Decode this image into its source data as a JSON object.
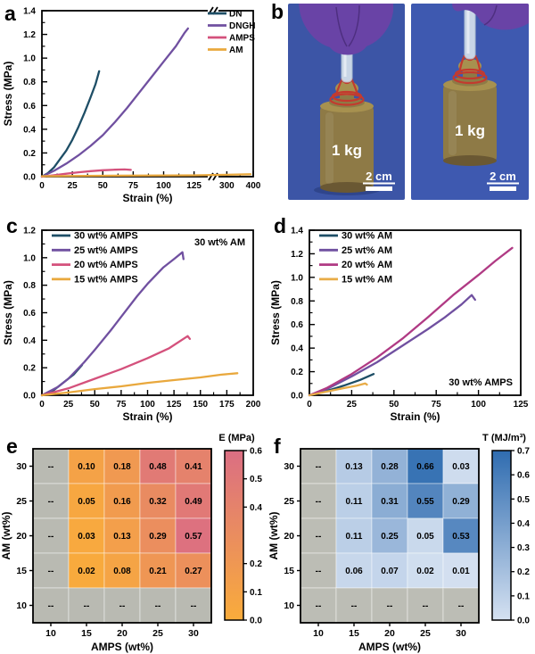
{
  "letters": {
    "a": "a",
    "b": "b",
    "c": "c",
    "d": "d",
    "e": "e",
    "f": "f"
  },
  "photo": {
    "colors": {
      "bg_left": "#3C55A6",
      "bg_right": "#3E59B0",
      "glove": "#6943A6",
      "glove_shade": "#4E2F80",
      "gel": "#DCE7EF",
      "wire": "#C33A2E",
      "brass": "#8E7A46",
      "brass_light": "#A7914F",
      "brass_dark": "#6A5833",
      "shadow": "#243876",
      "label_color": "#FFFFFF"
    },
    "photos": [
      {
        "weight_label": "1 kg",
        "scale_label": "2 cm"
      },
      {
        "weight_label": "1 kg",
        "scale_label": "2 cm"
      }
    ]
  },
  "chart_data": [
    {
      "id": "a",
      "type": "line",
      "xlabel": "Strain (%)",
      "ylabel": "Stress (MPa)",
      "ylim": [
        0,
        1.4
      ],
      "yticks": [
        [
          0,
          "0.0"
        ],
        [
          0.2,
          "0.2"
        ],
        [
          0.4,
          "0.4"
        ],
        [
          0.6,
          "0.6"
        ],
        [
          0.8,
          "0.8"
        ],
        [
          1,
          "1.0"
        ],
        [
          1.2,
          "1.2"
        ],
        [
          1.4,
          "1.4"
        ]
      ],
      "xbreak": {
        "seg1": [
          0,
          125
        ],
        "seg2": [
          300,
          400
        ],
        "frac1": 0.72,
        "fracGap": 0.155
      },
      "xticks": [
        [
          0,
          "0"
        ],
        [
          25,
          "25"
        ],
        [
          50,
          "50"
        ],
        [
          75,
          "75"
        ],
        [
          100,
          "100"
        ],
        [
          125,
          "125"
        ],
        [
          300,
          "300"
        ],
        [
          400,
          "400"
        ]
      ],
      "legend_pos": "ne",
      "series": [
        {
          "name": "DN",
          "color": "#1E4E66",
          "points": [
            [
              0,
              0
            ],
            [
              5,
              0.03
            ],
            [
              10,
              0.08
            ],
            [
              15,
              0.15
            ],
            [
              20,
              0.22
            ],
            [
              25,
              0.31
            ],
            [
              30,
              0.42
            ],
            [
              35,
              0.54
            ],
            [
              40,
              0.67
            ],
            [
              44,
              0.78
            ],
            [
              47,
              0.89
            ]
          ]
        },
        {
          "name": "DNGH",
          "color": "#7050A0",
          "points": [
            [
              0,
              0
            ],
            [
              10,
              0.05
            ],
            [
              20,
              0.11
            ],
            [
              30,
              0.18
            ],
            [
              40,
              0.26
            ],
            [
              50,
              0.35
            ],
            [
              60,
              0.46
            ],
            [
              70,
              0.58
            ],
            [
              80,
              0.71
            ],
            [
              90,
              0.84
            ],
            [
              100,
              0.97
            ],
            [
              110,
              1.1
            ],
            [
              117,
              1.21
            ],
            [
              120,
              1.25
            ]
          ]
        },
        {
          "name": "AMPS",
          "color": "#D4517C",
          "points": [
            [
              0,
              0
            ],
            [
              10,
              0.012
            ],
            [
              20,
              0.025
            ],
            [
              30,
              0.037
            ],
            [
              40,
              0.047
            ],
            [
              50,
              0.054
            ],
            [
              60,
              0.059
            ],
            [
              68,
              0.061
            ],
            [
              73,
              0.057
            ]
          ]
        },
        {
          "name": "AM",
          "color": "#E9A83D",
          "points": [
            [
              0,
              0.004
            ],
            [
              60,
              0.008
            ],
            [
              125,
              0.011
            ],
            [
              300,
              0.016
            ],
            [
              390,
              0.02
            ]
          ]
        }
      ]
    },
    {
      "id": "c",
      "type": "line",
      "xlabel": "Strain (%)",
      "ylabel": "Stress (MPa)",
      "xlim": [
        0,
        200
      ],
      "xticks": [
        [
          0,
          "0"
        ],
        [
          25,
          "25"
        ],
        [
          50,
          "50"
        ],
        [
          75,
          "75"
        ],
        [
          100,
          "100"
        ],
        [
          125,
          "125"
        ],
        [
          150,
          "150"
        ],
        [
          175,
          "175"
        ],
        [
          200,
          "200"
        ]
      ],
      "ylim": [
        0,
        1.2
      ],
      "yticks": [
        [
          0,
          "0.0"
        ],
        [
          0.2,
          "0.2"
        ],
        [
          0.4,
          "0.4"
        ],
        [
          0.6,
          "0.6"
        ],
        [
          0.8,
          "0.8"
        ],
        [
          1,
          "1.0"
        ],
        [
          1.2,
          "1.2"
        ]
      ],
      "legend_pos": "nw",
      "annotation": {
        "text": "30 wt% AM",
        "pos": "ne"
      },
      "series": [
        {
          "name": "30 wt% AMPS",
          "color": "#1E4E66",
          "points": [
            [
              0,
              0
            ],
            [
              10,
              0.03
            ],
            [
              20,
              0.09
            ],
            [
              30,
              0.15
            ],
            [
              38,
              0.22
            ]
          ]
        },
        {
          "name": "25 wt% AMPS",
          "color": "#7050A0",
          "points": [
            [
              0,
              0
            ],
            [
              15,
              0.06
            ],
            [
              25,
              0.12
            ],
            [
              40,
              0.24
            ],
            [
              50,
              0.33
            ],
            [
              65,
              0.47
            ],
            [
              75,
              0.57
            ],
            [
              90,
              0.72
            ],
            [
              100,
              0.81
            ],
            [
              115,
              0.93
            ],
            [
              125,
              0.99
            ],
            [
              133,
              1.04
            ],
            [
              134,
              0.99
            ]
          ]
        },
        {
          "name": "20 wt% AMPS",
          "color": "#D4517C",
          "points": [
            [
              0,
              0
            ],
            [
              25,
              0.05
            ],
            [
              50,
              0.12
            ],
            [
              75,
              0.19
            ],
            [
              100,
              0.27
            ],
            [
              120,
              0.34
            ],
            [
              138,
              0.43
            ],
            [
              140,
              0.41
            ]
          ]
        },
        {
          "name": "15 wt% AMPS",
          "color": "#E9A83D",
          "points": [
            [
              0,
              0
            ],
            [
              25,
              0.02
            ],
            [
              50,
              0.045
            ],
            [
              75,
              0.065
            ],
            [
              100,
              0.09
            ],
            [
              125,
              0.11
            ],
            [
              150,
              0.13
            ],
            [
              170,
              0.15
            ],
            [
              185,
              0.16
            ]
          ]
        }
      ]
    },
    {
      "id": "d",
      "type": "line",
      "xlabel": "Strain (%)",
      "ylabel": "Stress (MPa)",
      "xlim": [
        0,
        125
      ],
      "xticks": [
        [
          0,
          "0"
        ],
        [
          25,
          "25"
        ],
        [
          50,
          "50"
        ],
        [
          75,
          "75"
        ],
        [
          100,
          "100"
        ],
        [
          125,
          "125"
        ]
      ],
      "ylim": [
        0,
        1.4
      ],
      "yticks": [
        [
          0,
          "0.0"
        ],
        [
          0.2,
          "0.2"
        ],
        [
          0.4,
          "0.4"
        ],
        [
          0.6,
          "0.6"
        ],
        [
          0.8,
          "0.8"
        ],
        [
          1,
          "1.0"
        ],
        [
          1.2,
          "1.2"
        ],
        [
          1.4,
          "1.4"
        ]
      ],
      "legend_pos": "nw",
      "annotation": {
        "text": "30 wt% AMPS",
        "pos": "se"
      },
      "series": [
        {
          "name": "30 wt% AM",
          "color": "#1E4E66",
          "points": [
            [
              0,
              0
            ],
            [
              10,
              0.035
            ],
            [
              20,
              0.08
            ],
            [
              30,
              0.13
            ],
            [
              38,
              0.18
            ]
          ]
        },
        {
          "name": "25 wt% AM",
          "color": "#7050A0",
          "points": [
            [
              0,
              0
            ],
            [
              10,
              0.05
            ],
            [
              25,
              0.16
            ],
            [
              40,
              0.28
            ],
            [
              55,
              0.42
            ],
            [
              70,
              0.56
            ],
            [
              80,
              0.66
            ],
            [
              90,
              0.77
            ],
            [
              96,
              0.85
            ],
            [
              98,
              0.81
            ]
          ]
        },
        {
          "name": "20 wt% AM",
          "color": "#B03A84",
          "points": [
            [
              0,
              0
            ],
            [
              10,
              0.06
            ],
            [
              25,
              0.18
            ],
            [
              40,
              0.32
            ],
            [
              55,
              0.48
            ],
            [
              70,
              0.66
            ],
            [
              85,
              0.85
            ],
            [
              100,
              1.02
            ],
            [
              110,
              1.14
            ],
            [
              120,
              1.25
            ]
          ]
        },
        {
          "name": "15 wt% AM",
          "color": "#E8AC47",
          "points": [
            [
              0,
              0
            ],
            [
              10,
              0.03
            ],
            [
              20,
              0.06
            ],
            [
              28,
              0.082
            ],
            [
              33,
              0.1
            ],
            [
              34,
              0.09
            ]
          ]
        }
      ]
    },
    {
      "id": "e",
      "type": "heatmap",
      "xlabel": "AMPS (wt%)",
      "ylabel": "AM (wt%)",
      "xticks": [
        "10",
        "15",
        "20",
        "25",
        "30"
      ],
      "yticks": [
        "30",
        "25",
        "20",
        "15",
        "10"
      ],
      "rows": [
        [
          null,
          0.1,
          0.18,
          0.48,
          0.41
        ],
        [
          null,
          0.05,
          0.16,
          0.32,
          0.49
        ],
        [
          null,
          0.03,
          0.13,
          0.29,
          0.57
        ],
        [
          null,
          0.02,
          0.08,
          0.21,
          0.27
        ],
        [
          null,
          null,
          null,
          null,
          null
        ]
      ],
      "cell_labels": [
        [
          "--",
          "0.10",
          "0.18",
          "0.48",
          "0.41"
        ],
        [
          "--",
          "0.05",
          "0.16",
          "0.32",
          "0.49"
        ],
        [
          "--",
          "0.03",
          "0.13",
          "0.29",
          "0.57"
        ],
        [
          "--",
          "0.02",
          "0.08",
          "0.21",
          "0.27"
        ],
        [
          "--",
          "--",
          "--",
          "--",
          "--"
        ]
      ],
      "missing_color": "#B9BAB2",
      "cmap": {
        "min": 0,
        "max": 0.6,
        "from": "#F9AC3B",
        "to": "#DB6E83"
      },
      "colorbar_title": "E (MPa)",
      "colorbar_ticks": [
        [
          0.6,
          "0.6"
        ],
        [
          0.5,
          "0.5"
        ],
        [
          0.4,
          "0.4"
        ],
        [
          0.2,
          "0.2"
        ],
        [
          0.1,
          "0.1"
        ],
        [
          0,
          "0.0"
        ]
      ]
    },
    {
      "id": "f",
      "type": "heatmap",
      "xlabel": "AMPS (wt%)",
      "ylabel": "AM (wt%)",
      "xticks": [
        "10",
        "15",
        "20",
        "25",
        "30"
      ],
      "yticks": [
        "30",
        "25",
        "20",
        "15",
        "10"
      ],
      "rows": [
        [
          null,
          0.13,
          0.28,
          0.66,
          0.03
        ],
        [
          null,
          0.11,
          0.31,
          0.55,
          0.29
        ],
        [
          null,
          0.11,
          0.25,
          0.05,
          0.53
        ],
        [
          null,
          0.06,
          0.07,
          0.02,
          0.01
        ],
        [
          null,
          null,
          null,
          null,
          null
        ]
      ],
      "cell_labels": [
        [
          "--",
          "0.13",
          "0.28",
          "0.66",
          "0.03"
        ],
        [
          "--",
          "0.11",
          "0.31",
          "0.55",
          "0.29"
        ],
        [
          "--",
          "0.11",
          "0.25",
          "0.05",
          "0.53"
        ],
        [
          "--",
          "0.06",
          "0.07",
          "0.02",
          "0.01"
        ],
        [
          "--",
          "--",
          "--",
          "--",
          "--"
        ]
      ],
      "missing_color": "#BCBDB5",
      "cmap": {
        "min": 0,
        "max": 0.7,
        "from": "#D5E1F1",
        "to": "#2F6CB0"
      },
      "colorbar_title": "T (MJ/m³)",
      "colorbar_ticks": [
        [
          0.7,
          "0.7"
        ],
        [
          0.6,
          "0.6"
        ],
        [
          0.5,
          "0.5"
        ],
        [
          0.4,
          "0.4"
        ],
        [
          0.3,
          "0.3"
        ],
        [
          0.2,
          "0.2"
        ],
        [
          0.1,
          "0.1"
        ],
        [
          0,
          "0.0"
        ]
      ]
    }
  ]
}
